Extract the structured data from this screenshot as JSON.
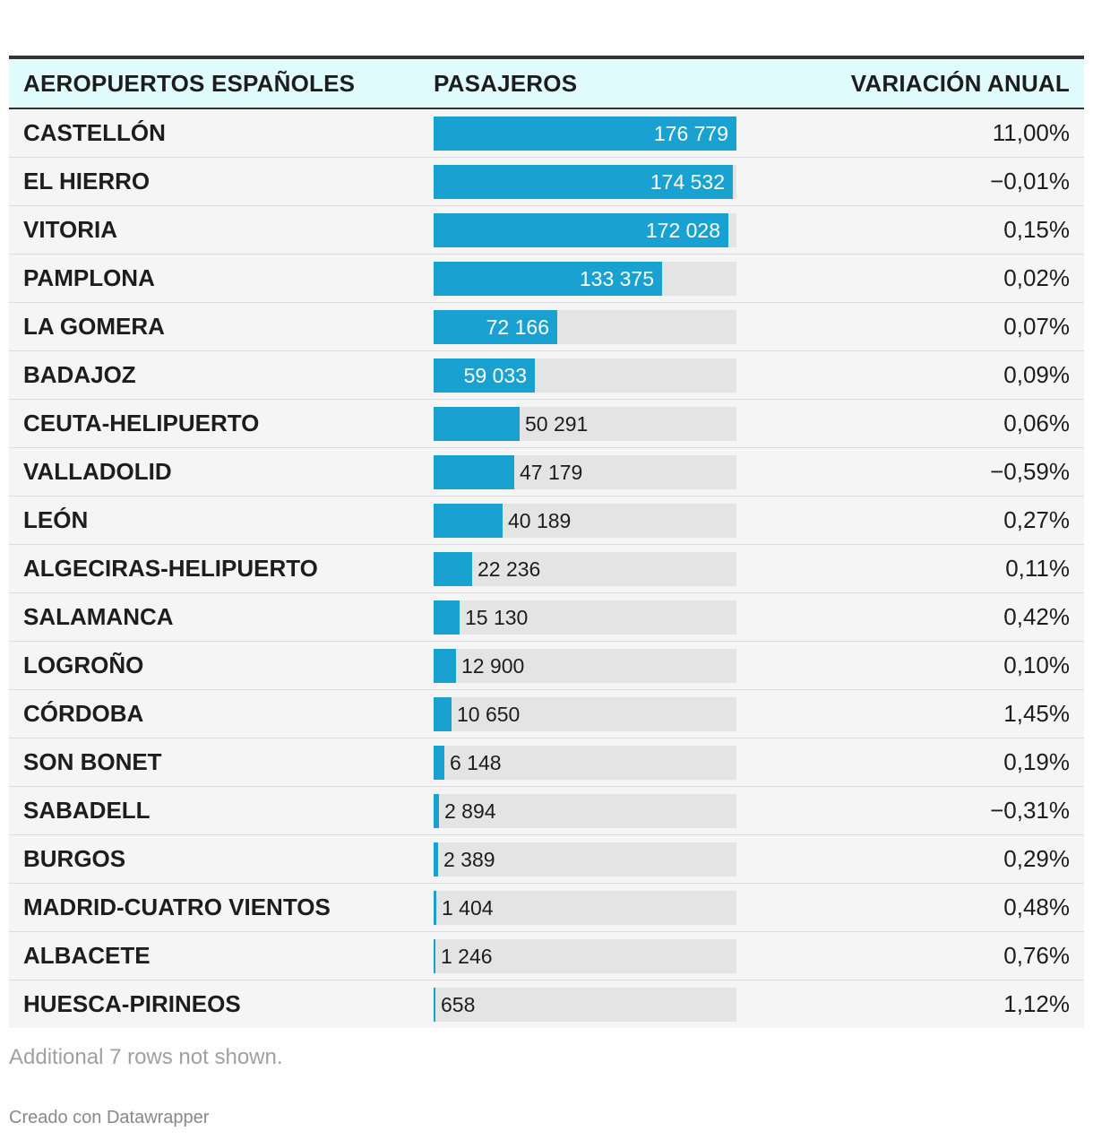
{
  "chart_data": {
    "type": "table",
    "columns": [
      "AEROPUERTOS ESPAÑOLES",
      "PASAJEROS",
      "VARIACIÓN ANUAL"
    ],
    "bar_max": 176779,
    "rows": [
      {
        "airport": "CASTELLÓN",
        "passengers": 176779,
        "passengers_label": "176 779",
        "variation": "11,00%"
      },
      {
        "airport": "EL HIERRO",
        "passengers": 174532,
        "passengers_label": "174 532",
        "variation": "−0,01%"
      },
      {
        "airport": "VITORIA",
        "passengers": 172028,
        "passengers_label": "172 028",
        "variation": "0,15%"
      },
      {
        "airport": "PAMPLONA",
        "passengers": 133375,
        "passengers_label": "133 375",
        "variation": "0,02%"
      },
      {
        "airport": "LA GOMERA",
        "passengers": 72166,
        "passengers_label": "72 166",
        "variation": "0,07%"
      },
      {
        "airport": "BADAJOZ",
        "passengers": 59033,
        "passengers_label": "59 033",
        "variation": "0,09%"
      },
      {
        "airport": "CEUTA-HELIPUERTO",
        "passengers": 50291,
        "passengers_label": "50 291",
        "variation": "0,06%"
      },
      {
        "airport": "VALLADOLID",
        "passengers": 47179,
        "passengers_label": "47 179",
        "variation": "−0,59%"
      },
      {
        "airport": "LEÓN",
        "passengers": 40189,
        "passengers_label": "40 189",
        "variation": "0,27%"
      },
      {
        "airport": "ALGECIRAS-HELIPUERTO",
        "passengers": 22236,
        "passengers_label": "22 236",
        "variation": "0,11%"
      },
      {
        "airport": "SALAMANCA",
        "passengers": 15130,
        "passengers_label": "15 130",
        "variation": "0,42%"
      },
      {
        "airport": "LOGROÑO",
        "passengers": 12900,
        "passengers_label": "12 900",
        "variation": "0,10%"
      },
      {
        "airport": "CÓRDOBA",
        "passengers": 10650,
        "passengers_label": "10 650",
        "variation": "1,45%"
      },
      {
        "airport": "SON BONET",
        "passengers": 6148,
        "passengers_label": "6 148",
        "variation": "0,19%"
      },
      {
        "airport": "SABADELL",
        "passengers": 2894,
        "passengers_label": "2 894",
        "variation": "−0,31%"
      },
      {
        "airport": "BURGOS",
        "passengers": 2389,
        "passengers_label": "2 389",
        "variation": "0,29%"
      },
      {
        "airport": "MADRID-CUATRO VIENTOS",
        "passengers": 1404,
        "passengers_label": "1 404",
        "variation": "0,48%"
      },
      {
        "airport": "ALBACETE",
        "passengers": 1246,
        "passengers_label": "1 246",
        "variation": "0,76%"
      },
      {
        "airport": "HUESCA-PIRINEOS",
        "passengers": 658,
        "passengers_label": "658",
        "variation": "1,12%"
      }
    ]
  },
  "colors": {
    "bar": "#19a2d1",
    "track": "#e4e4e4",
    "header_bg": "#e1fcfc"
  },
  "footer": {
    "note": "Additional 7 rows not shown.",
    "credit": "Creado con Datawrapper"
  }
}
